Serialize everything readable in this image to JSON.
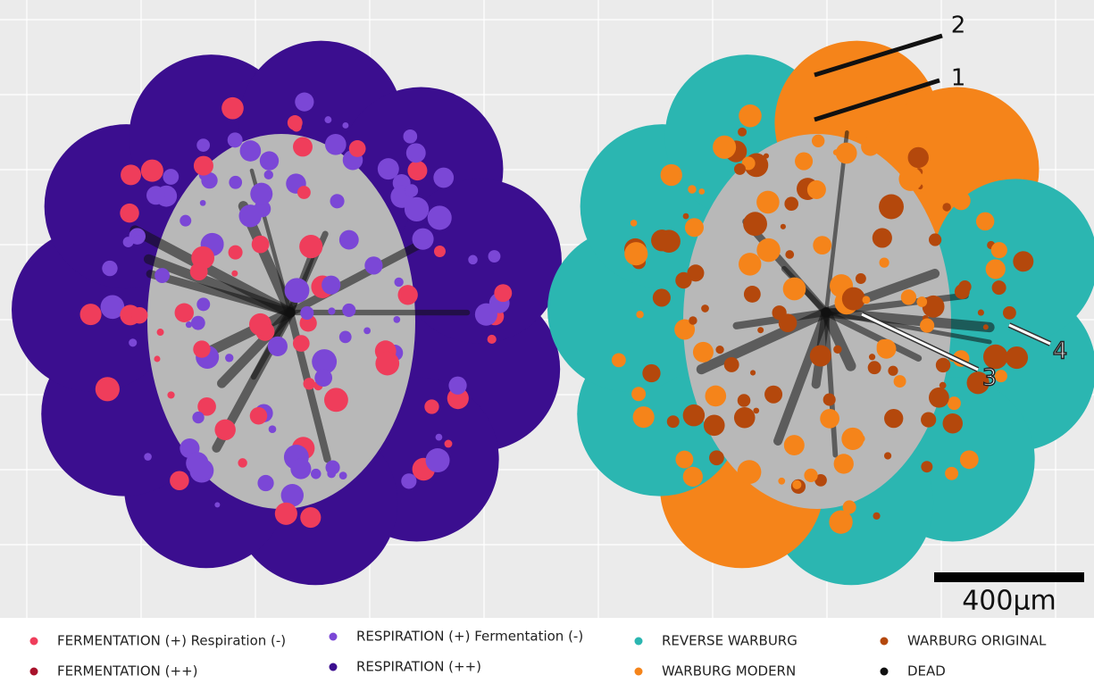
{
  "legend": [
    {
      "label": "FERMENTATION (+) Respiration (-)",
      "color": "#ef3d5b"
    },
    {
      "label": "FERMENTATION (++)",
      "color": "#a8122b"
    },
    {
      "label": "RESPIRATION (+) Fermentation (-)",
      "color": "#7b47d6"
    },
    {
      "label": "RESPIRATION (++)",
      "color": "#3b0e8f"
    },
    {
      "label": "REVERSE WARBURG",
      "color": "#2bb6b1"
    },
    {
      "label": "WARBURG MODERN",
      "color": "#f5841a"
    },
    {
      "label": "WARBURG ORIGINAL",
      "color": "#b4480c"
    },
    {
      "label": "DEAD",
      "color": "#111111"
    }
  ],
  "annotations": [
    "1",
    "2",
    "3",
    "4"
  ],
  "scale_bar": {
    "label": "400μm"
  }
}
